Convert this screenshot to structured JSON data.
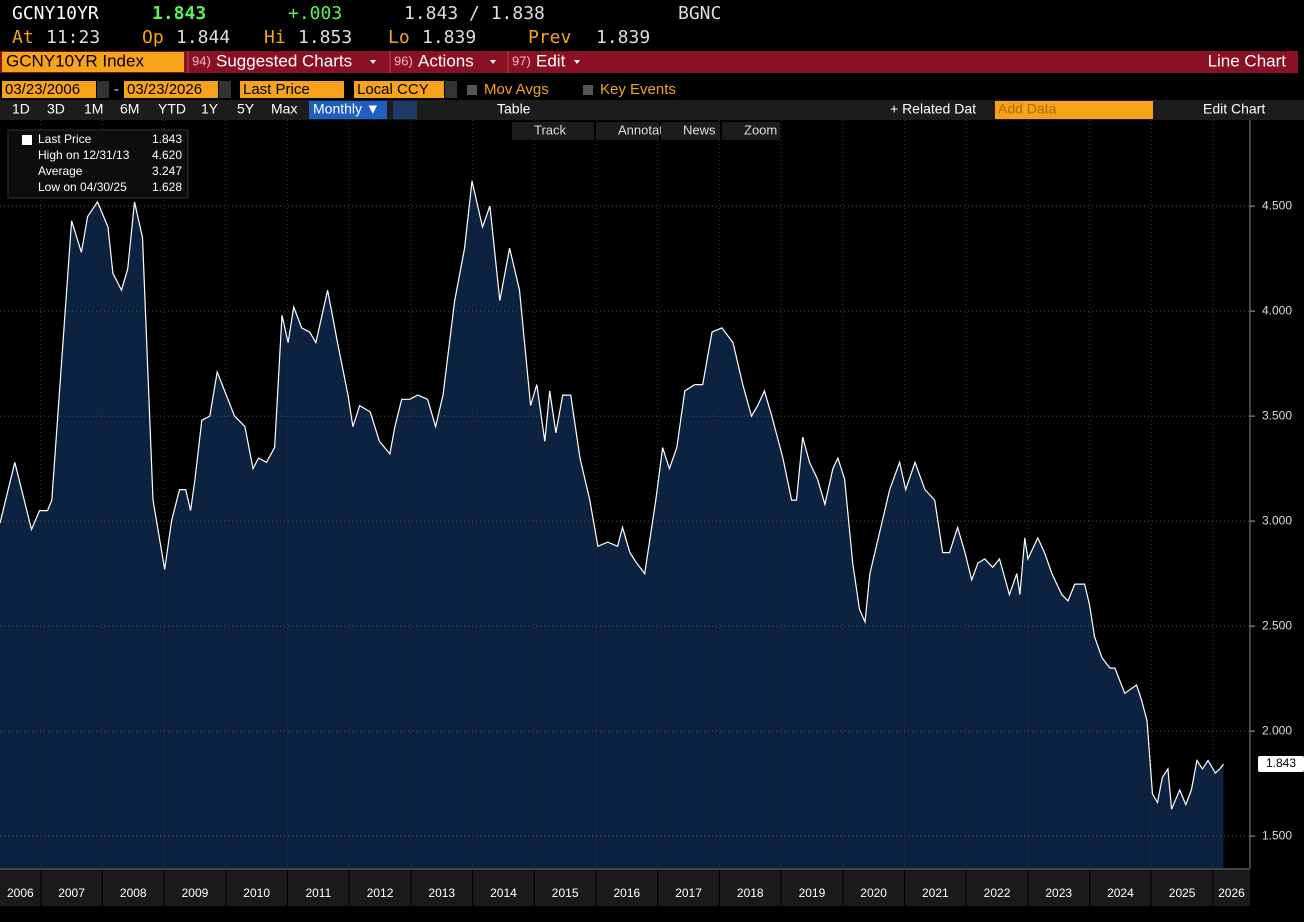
{
  "header": {
    "ticker": "GCNY10YR",
    "price": "1.843",
    "change": "+.003",
    "bid_ask": "1.843 / 1.838",
    "source": "BGNC",
    "fields": [
      {
        "label": "At",
        "value": "11:23"
      },
      {
        "label": "Op",
        "value": "1.844"
      },
      {
        "label": "Hi",
        "value": "1.853"
      },
      {
        "label": "Lo",
        "value": "1.839"
      },
      {
        "label": "Prev",
        "value": "1.839"
      }
    ]
  },
  "menu": {
    "security": "GCNY10YR Index",
    "items": [
      {
        "num": "94)",
        "label": "Suggested Charts"
      },
      {
        "num": "96)",
        "label": "Actions"
      },
      {
        "num": "97)",
        "label": "Edit"
      }
    ],
    "chart_kind": "Line Chart"
  },
  "controls": {
    "start_date": "03/23/2006",
    "end_date": "03/23/2026",
    "field": "Last Price",
    "currency": "Local CCY",
    "mov_avgs": "Mov Avgs",
    "key_events": "Key Events"
  },
  "toolbar": {
    "periods": [
      "1D",
      "3D",
      "1M",
      "6M",
      "YTD",
      "1Y",
      "5Y",
      "Max"
    ],
    "frequency": "Monthly ▼",
    "table": "Table",
    "related": "+ Related Dat",
    "add_data": "Add Data",
    "edit_chart": "Edit Chart"
  },
  "tools": [
    "Track",
    "Annotate",
    "News",
    "Zoom"
  ],
  "legend": {
    "items": [
      {
        "label": "Last Price",
        "value": "1.843"
      },
      {
        "label": "High on 12/31/13",
        "value": "4.620"
      },
      {
        "label": "Average",
        "value": "3.247"
      },
      {
        "label": "Low on 04/30/25",
        "value": "1.628"
      }
    ]
  },
  "chart_data": {
    "type": "area",
    "x": [
      2006.34,
      2006.58,
      2006.85,
      2006.98,
      2007.11,
      2007.18,
      2007.5,
      2007.66,
      2007.76,
      2007.92,
      2008.09,
      2008.17,
      2008.31,
      2008.41,
      2008.52,
      2008.65,
      2008.82,
      2009.01,
      2009.12,
      2009.25,
      2009.35,
      2009.43,
      2009.5,
      2009.61,
      2009.74,
      2009.86,
      2009.98,
      2010.14,
      2010.31,
      2010.44,
      2010.53,
      2010.66,
      2010.79,
      2010.91,
      2011.01,
      2011.1,
      2011.23,
      2011.36,
      2011.46,
      2011.65,
      2011.81,
      2011.98,
      2012.06,
      2012.17,
      2012.34,
      2012.49,
      2012.66,
      2012.74,
      2012.85,
      2012.98,
      2013.11,
      2013.27,
      2013.4,
      2013.52,
      2013.71,
      2013.87,
      2013.99,
      2014.16,
      2014.28,
      2014.44,
      2014.6,
      2014.76,
      2014.94,
      2015.04,
      2015.17,
      2015.25,
      2015.35,
      2015.46,
      2015.59,
      2015.74,
      2015.9,
      2016.03,
      2016.19,
      2016.35,
      2016.43,
      2016.55,
      2016.66,
      2016.79,
      2016.97,
      2017.08,
      2017.19,
      2017.31,
      2017.44,
      2017.6,
      2017.73,
      2017.88,
      2018.04,
      2018.22,
      2018.38,
      2018.52,
      2018.62,
      2018.73,
      2018.85,
      2019.03,
      2019.17,
      2019.25,
      2019.35,
      2019.46,
      2019.59,
      2019.71,
      2019.84,
      2019.92,
      2020.03,
      2020.16,
      2020.27,
      2020.36,
      2020.44,
      2020.6,
      2020.76,
      2020.92,
      2021.02,
      2021.17,
      2021.33,
      2021.49,
      2021.62,
      2021.73,
      2021.86,
      2021.98,
      2022.09,
      2022.19,
      2022.3,
      2022.43,
      2022.54,
      2022.7,
      2022.82,
      2022.87,
      2022.95,
      2023.0,
      2023.16,
      2023.27,
      2023.39,
      2023.55,
      2023.65,
      2023.76,
      2023.92,
      2024.0,
      2024.08,
      2024.2,
      2024.33,
      2024.41,
      2024.57,
      2024.76,
      2024.84,
      2024.93,
      2025.02,
      2025.1,
      2025.18,
      2025.27,
      2025.33,
      2025.46,
      2025.56,
      2025.65,
      2025.74,
      2025.83,
      2025.92,
      2026.04,
      2026.11,
      2026.17
    ],
    "series": [
      {
        "name": "Last Price",
        "color": "#ffffff",
        "fill": "#0b2340",
        "values": [
          2.99,
          3.28,
          2.96,
          3.05,
          3.05,
          3.1,
          4.43,
          4.28,
          4.45,
          4.52,
          4.4,
          4.18,
          4.1,
          4.2,
          4.52,
          4.35,
          3.1,
          2.77,
          3.0,
          3.15,
          3.15,
          3.05,
          3.2,
          3.48,
          3.5,
          3.71,
          3.62,
          3.5,
          3.45,
          3.25,
          3.3,
          3.28,
          3.35,
          3.98,
          3.85,
          4.02,
          3.92,
          3.9,
          3.85,
          4.1,
          3.85,
          3.6,
          3.45,
          3.55,
          3.52,
          3.38,
          3.32,
          3.45,
          3.58,
          3.58,
          3.6,
          3.58,
          3.45,
          3.6,
          4.05,
          4.3,
          4.62,
          4.4,
          4.5,
          4.05,
          4.3,
          4.1,
          3.55,
          3.65,
          3.38,
          3.62,
          3.42,
          3.6,
          3.6,
          3.3,
          3.1,
          2.88,
          2.9,
          2.88,
          2.97,
          2.85,
          2.8,
          2.75,
          3.1,
          3.35,
          3.25,
          3.35,
          3.62,
          3.65,
          3.65,
          3.9,
          3.92,
          3.85,
          3.65,
          3.5,
          3.55,
          3.62,
          3.5,
          3.3,
          3.1,
          3.1,
          3.4,
          3.28,
          3.2,
          3.08,
          3.25,
          3.3,
          3.2,
          2.8,
          2.58,
          2.52,
          2.75,
          2.95,
          3.15,
          3.28,
          3.15,
          3.28,
          3.15,
          3.1,
          2.85,
          2.85,
          2.97,
          2.85,
          2.72,
          2.8,
          2.82,
          2.78,
          2.82,
          2.65,
          2.75,
          2.65,
          2.92,
          2.82,
          2.92,
          2.85,
          2.75,
          2.65,
          2.62,
          2.7,
          2.7,
          2.6,
          2.45,
          2.35,
          2.3,
          2.3,
          2.18,
          2.22,
          2.15,
          2.05,
          1.7,
          1.66,
          1.78,
          1.82,
          1.628,
          1.72,
          1.65,
          1.72,
          1.86,
          1.82,
          1.86,
          1.8,
          1.82,
          1.843
        ]
      }
    ],
    "last_value_label": "1.843",
    "xlim": [
      2006.34,
      2026.6
    ],
    "xticks": [
      2006,
      2007,
      2008,
      2009,
      2010,
      2011,
      2012,
      2013,
      2014,
      2015,
      2016,
      2017,
      2018,
      2019,
      2020,
      2021,
      2022,
      2023,
      2024,
      2025,
      2026
    ],
    "ylim": [
      1.348,
      4.91
    ],
    "yticks": [
      {
        "value": 1.5,
        "label": "1.500"
      },
      {
        "value": 2,
        "label": "2.000"
      },
      {
        "value": 2.5,
        "label": "2.500"
      },
      {
        "value": 3,
        "label": "3.000"
      },
      {
        "value": 3.5,
        "label": "3.500"
      },
      {
        "value": 4,
        "label": "4.000"
      },
      {
        "value": 4.5,
        "label": "4.500"
      }
    ],
    "grid": true
  }
}
